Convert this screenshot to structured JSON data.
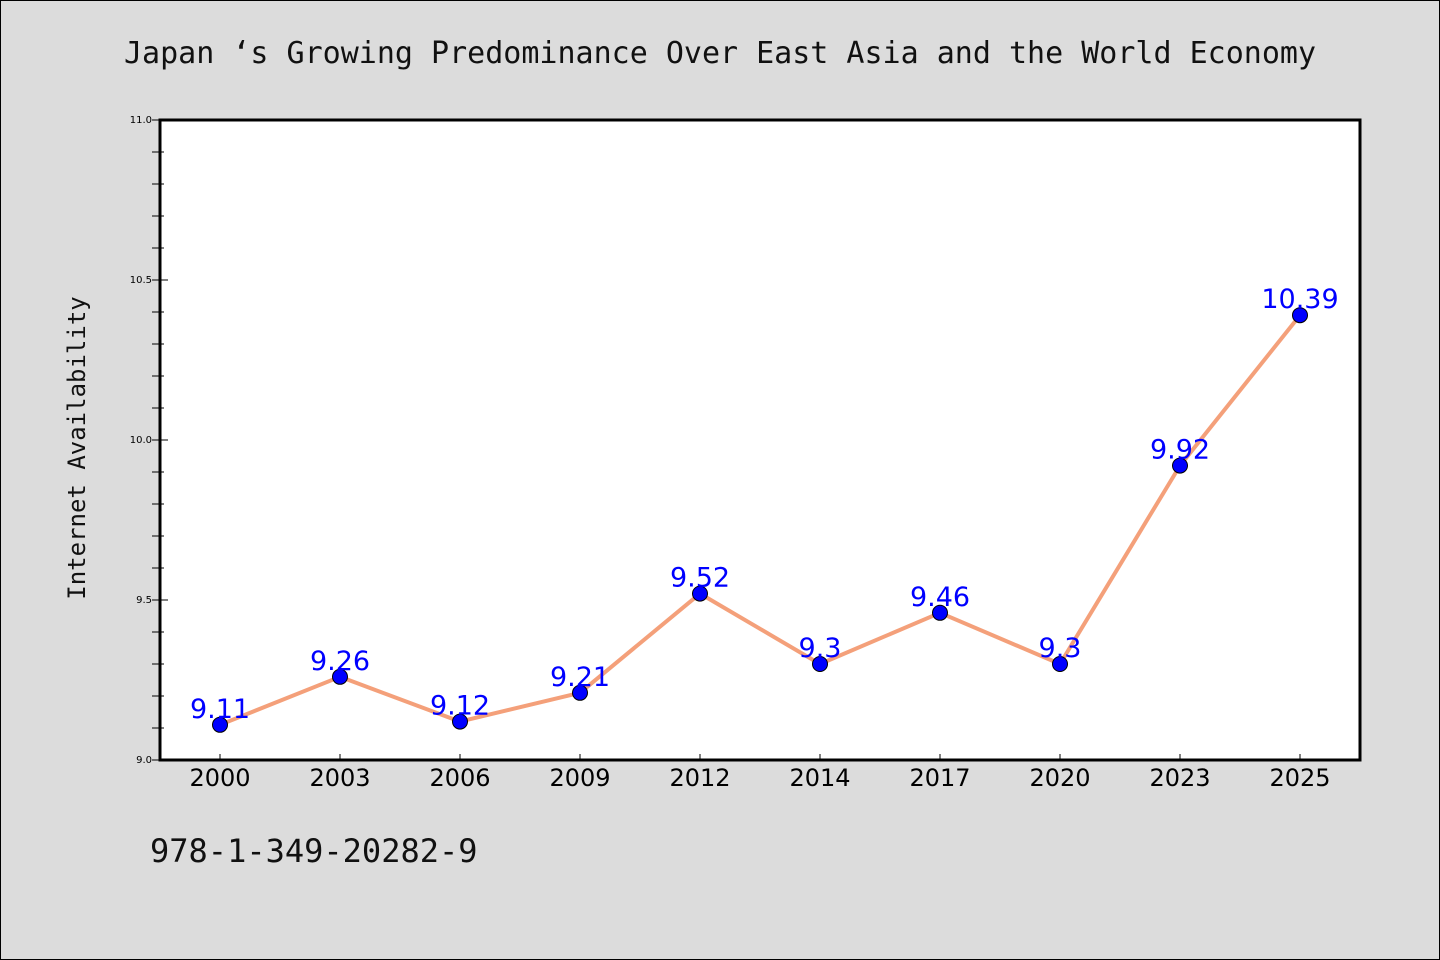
{
  "chart_data": {
    "type": "line",
    "title": "Japan ‘s Growing Predominance Over East Asia and the World Economy",
    "xlabel": "",
    "ylabel": "Internet Availability",
    "categories": [
      "2000",
      "2003",
      "2006",
      "2009",
      "2012",
      "2014",
      "2017",
      "2020",
      "2023",
      "2025"
    ],
    "values": [
      9.11,
      9.26,
      9.12,
      9.21,
      9.52,
      9.3,
      9.46,
      9.3,
      9.92,
      10.39
    ],
    "data_labels": [
      "9.11",
      "9.26",
      "9.12",
      "9.21",
      "9.52",
      "9.3",
      "9.46",
      "9.3",
      "9.92",
      "10.39"
    ],
    "ylim": [
      9.0,
      11.0
    ],
    "yticks": [
      "9.0",
      "9.5",
      "10.0",
      "10.5",
      "11.0"
    ],
    "grid": false,
    "line_color": "#f4a07a",
    "marker_color": "#0000ff",
    "label_color": "#0000ff"
  },
  "footer": {
    "isbn": "978-1-349-20282-9"
  }
}
